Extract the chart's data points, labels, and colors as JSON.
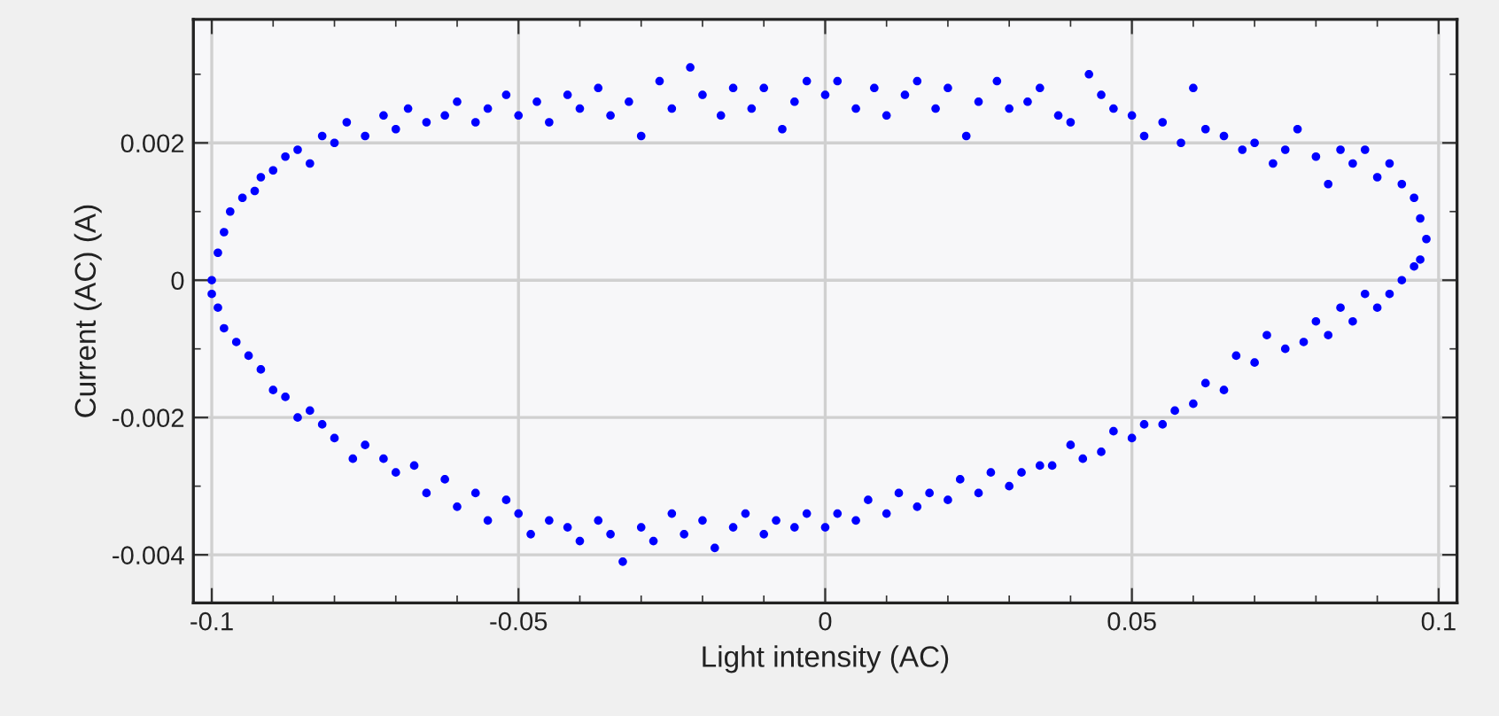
{
  "chart_data": {
    "type": "scatter",
    "xlabel": "Light intensity (AC)",
    "ylabel": "Current (AC) (A)",
    "xlim": [
      -0.103,
      0.103
    ],
    "ylim": [
      -0.0047,
      0.0038
    ],
    "xticks": [
      -0.1,
      -0.05,
      0,
      0.05,
      0.1
    ],
    "yticks": [
      -0.004,
      -0.002,
      0,
      0.002
    ],
    "grid": true,
    "marker": "circle",
    "series": [
      {
        "color": "#0000ff",
        "x": [
          -0.1,
          -0.099,
          -0.098,
          -0.097,
          -0.095,
          -0.093,
          -0.092,
          -0.09,
          -0.088,
          -0.086,
          -0.084,
          -0.082,
          -0.08,
          -0.078,
          -0.075,
          -0.072,
          -0.07,
          -0.068,
          -0.065,
          -0.062,
          -0.06,
          -0.057,
          -0.055,
          -0.052,
          -0.05,
          -0.047,
          -0.045,
          -0.042,
          -0.04,
          -0.037,
          -0.035,
          -0.032,
          -0.03,
          -0.027,
          -0.025,
          -0.022,
          -0.02,
          -0.017,
          -0.015,
          -0.012,
          -0.01,
          -0.007,
          -0.005,
          -0.003,
          0.0,
          0.002,
          0.005,
          0.008,
          0.01,
          0.013,
          0.015,
          0.018,
          0.02,
          0.023,
          0.025,
          0.028,
          0.03,
          0.033,
          0.035,
          0.038,
          0.04,
          0.043,
          0.045,
          0.047,
          0.05,
          0.052,
          0.055,
          0.058,
          0.06,
          0.062,
          0.065,
          0.068,
          0.07,
          0.073,
          0.075,
          0.077,
          0.08,
          0.082,
          0.084,
          0.086,
          0.088,
          0.09,
          0.092,
          0.094,
          0.096,
          0.097,
          0.098,
          0.097,
          0.096,
          0.094,
          0.092,
          0.09,
          0.088,
          0.086,
          0.084,
          0.082,
          0.08,
          0.078,
          0.075,
          0.072,
          0.07,
          0.067,
          0.065,
          0.062,
          0.06,
          0.057,
          0.055,
          0.052,
          0.05,
          0.047,
          0.045,
          0.042,
          0.04,
          0.037,
          0.035,
          0.032,
          0.03,
          0.027,
          0.025,
          0.022,
          0.02,
          0.017,
          0.015,
          0.012,
          0.01,
          0.007,
          0.005,
          0.002,
          0.0,
          -0.003,
          -0.005,
          -0.008,
          -0.01,
          -0.013,
          -0.015,
          -0.018,
          -0.02,
          -0.023,
          -0.025,
          -0.028,
          -0.03,
          -0.033,
          -0.035,
          -0.037,
          -0.04,
          -0.042,
          -0.045,
          -0.048,
          -0.05,
          -0.052,
          -0.055,
          -0.057,
          -0.06,
          -0.062,
          -0.065,
          -0.067,
          -0.07,
          -0.072,
          -0.075,
          -0.077,
          -0.08,
          -0.082,
          -0.084,
          -0.086,
          -0.088,
          -0.09,
          -0.092,
          -0.094,
          -0.096,
          -0.098,
          -0.099,
          -0.1
        ],
        "values": [
          0.0,
          0.0004,
          0.0007,
          0.001,
          0.0012,
          0.0013,
          0.0015,
          0.0016,
          0.0018,
          0.0019,
          0.0017,
          0.0021,
          0.002,
          0.0023,
          0.0021,
          0.0024,
          0.0022,
          0.0025,
          0.0023,
          0.0024,
          0.0026,
          0.0023,
          0.0025,
          0.0027,
          0.0024,
          0.0026,
          0.0023,
          0.0027,
          0.0025,
          0.0028,
          0.0024,
          0.0026,
          0.0021,
          0.0029,
          0.0025,
          0.0031,
          0.0027,
          0.0024,
          0.0028,
          0.0025,
          0.0028,
          0.0022,
          0.0026,
          0.0029,
          0.0027,
          0.0029,
          0.0025,
          0.0028,
          0.0024,
          0.0027,
          0.0029,
          0.0025,
          0.0028,
          0.0021,
          0.0026,
          0.0029,
          0.0025,
          0.0026,
          0.0028,
          0.0024,
          0.0023,
          0.003,
          0.0027,
          0.0025,
          0.0024,
          0.0021,
          0.0023,
          0.002,
          0.0028,
          0.0022,
          0.0021,
          0.0019,
          0.002,
          0.0017,
          0.0019,
          0.0022,
          0.0018,
          0.0014,
          0.0019,
          0.0017,
          0.0019,
          0.0015,
          0.0017,
          0.0014,
          0.0012,
          0.0009,
          0.0006,
          0.0003,
          0.0002,
          0.0,
          -0.0002,
          -0.0004,
          -0.0002,
          -0.0006,
          -0.0004,
          -0.0008,
          -0.0006,
          -0.0009,
          -0.001,
          -0.0008,
          -0.0012,
          -0.0011,
          -0.0016,
          -0.0015,
          -0.0018,
          -0.0019,
          -0.0021,
          -0.0021,
          -0.0023,
          -0.0022,
          -0.0025,
          -0.0026,
          -0.0024,
          -0.0027,
          -0.0027,
          -0.0028,
          -0.003,
          -0.0028,
          -0.0031,
          -0.0029,
          -0.0032,
          -0.0031,
          -0.0033,
          -0.0031,
          -0.0034,
          -0.0032,
          -0.0035,
          -0.0034,
          -0.0036,
          -0.0034,
          -0.0036,
          -0.0035,
          -0.0037,
          -0.0034,
          -0.0036,
          -0.0039,
          -0.0035,
          -0.0037,
          -0.0034,
          -0.0038,
          -0.0036,
          -0.0041,
          -0.0037,
          -0.0035,
          -0.0038,
          -0.0036,
          -0.0035,
          -0.0037,
          -0.0034,
          -0.0032,
          -0.0035,
          -0.0031,
          -0.0033,
          -0.0029,
          -0.0031,
          -0.0027,
          -0.0028,
          -0.0026,
          -0.0024,
          -0.0026,
          -0.0023,
          -0.0021,
          -0.0019,
          -0.002,
          -0.0017,
          -0.0016,
          -0.0013,
          -0.0011,
          -0.0009,
          -0.0007,
          -0.0004,
          -0.0002
        ]
      }
    ]
  }
}
